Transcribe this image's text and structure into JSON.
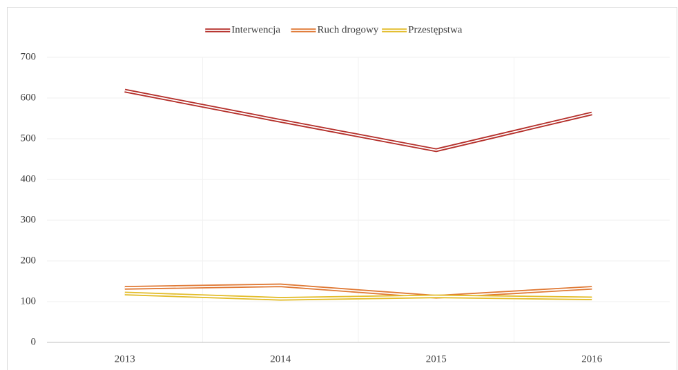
{
  "chart_data": {
    "type": "line",
    "categories": [
      "2013",
      "2014",
      "2015",
      "2016"
    ],
    "series": [
      {
        "name": "Interwencja",
        "color": "#b5312c",
        "values": [
          618,
          544,
          472,
          562
        ]
      },
      {
        "name": "Ruch drogowy",
        "color": "#e07a36",
        "values": [
          134,
          140,
          112,
          134
        ]
      },
      {
        "name": "Przestępstwa",
        "color": "#e3bd2c",
        "values": [
          120,
          107,
          113,
          108
        ]
      }
    ],
    "ylim": [
      0,
      700
    ],
    "yticks": [
      0,
      100,
      200,
      300,
      400,
      500,
      600,
      700
    ],
    "grid": true,
    "legend": "top"
  }
}
